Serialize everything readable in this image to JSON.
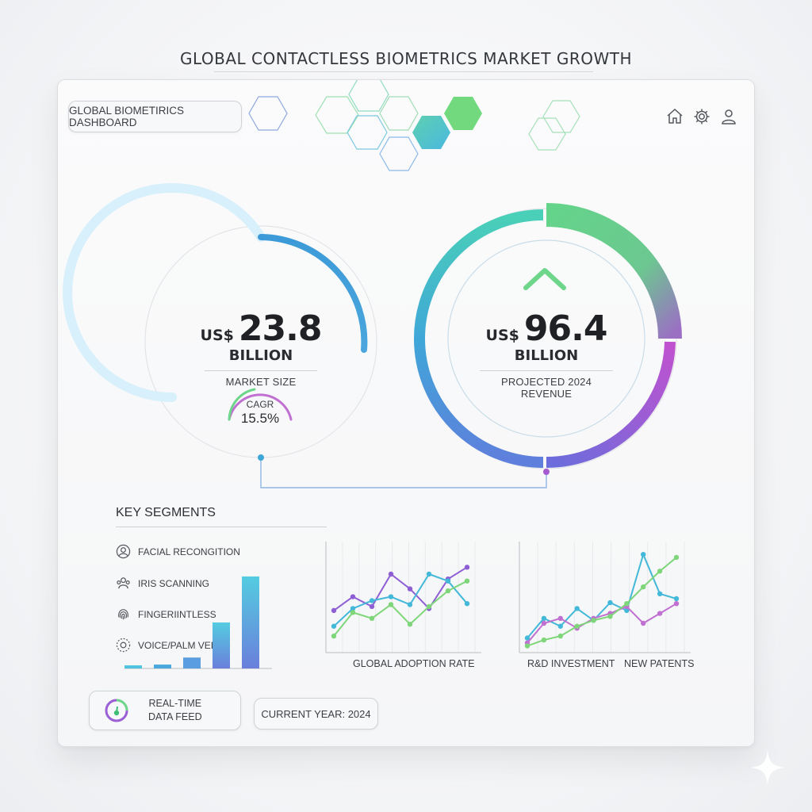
{
  "header": {
    "title": "GLOBAL CONTACTLESS BIOMETRICS MARKET GROWTH"
  },
  "dashboard": {
    "title": "GLOBAL BIOMETIRICS DASHBOARD",
    "icons": [
      "home-icon",
      "gear-icon",
      "user-icon"
    ]
  },
  "metrics": {
    "market": {
      "currency": "US$",
      "value": "23.8",
      "unit": "BILLION",
      "label": "MARKET SIZE",
      "progress": 0.45
    },
    "cagr": {
      "label": "CAGR",
      "value": "15.5%"
    },
    "projected": {
      "currency": "US$",
      "value": "96.4",
      "unit": "BILLION",
      "label": "PROJECTED 2024 REVENUE"
    }
  },
  "segments": {
    "title": "KEY SEGMENTS",
    "items": [
      {
        "label": "FACIAL RECONGITION",
        "icon": "face-icon"
      },
      {
        "label": "IRIS SCANNING",
        "icon": "people-icon"
      },
      {
        "label": "FINGERIINTLESS",
        "icon": "fingerprint-icon"
      },
      {
        "label": "VOICE/PALM VEIN",
        "icon": "voice-icon"
      }
    ]
  },
  "chart_data": [
    {
      "type": "bar",
      "categories": [
        "1",
        "2",
        "3",
        "4",
        "5"
      ],
      "values": [
        4,
        5,
        14,
        59,
        118
      ],
      "ylim": [
        0,
        120
      ],
      "colors": [
        "#4fc3e0",
        "#4aa8dc",
        "#5a9de0",
        "#4ab8e0",
        "#6a7fdc"
      ]
    },
    {
      "type": "line",
      "title": "",
      "xlabel": "GLOBAL ADOPTION RATE",
      "x": [
        1,
        2,
        3,
        4,
        5,
        6,
        7,
        8
      ],
      "ylim": [
        0,
        100
      ],
      "series": [
        {
          "values": [
            38,
            52,
            42,
            75,
            60,
            40,
            70,
            82
          ],
          "color": "#8e5fd4"
        },
        {
          "values": [
            22,
            40,
            48,
            52,
            44,
            75,
            68,
            45
          ],
          "color": "#44b8d8"
        },
        {
          "values": [
            12,
            36,
            30,
            44,
            24,
            42,
            58,
            68
          ],
          "color": "#7fd67a"
        }
      ]
    },
    {
      "type": "line",
      "xlabel": "R&D INVESTMENT",
      "xlabel2": "NEW PATENTS",
      "x": [
        1,
        2,
        3,
        4,
        5,
        6,
        7,
        8,
        9,
        10
      ],
      "ylim": [
        0,
        100
      ],
      "series": [
        {
          "values": [
            10,
            30,
            22,
            40,
            28,
            46,
            38,
            95,
            55,
            50
          ],
          "color": "#44b8d8"
        },
        {
          "values": [
            5,
            25,
            30,
            20,
            30,
            35,
            42,
            25,
            35,
            45
          ],
          "color": "#c070d0"
        },
        {
          "values": [
            2,
            8,
            12,
            22,
            28,
            32,
            45,
            62,
            78,
            92
          ],
          "color": "#7fd67a"
        }
      ]
    }
  ],
  "footer": {
    "realtime": "REAL-TIME\nDATA FEED",
    "realtime_line1": "REAL-TIME",
    "realtime_line2": "DATA FEED",
    "year": "CURRENT YEAR: 2024"
  },
  "colors": {
    "blue": "#3c9ad8",
    "green": "#6dd68a",
    "teal": "#4fc3c8",
    "purple": "#9b5fd6",
    "magenta": "#b656cf"
  }
}
